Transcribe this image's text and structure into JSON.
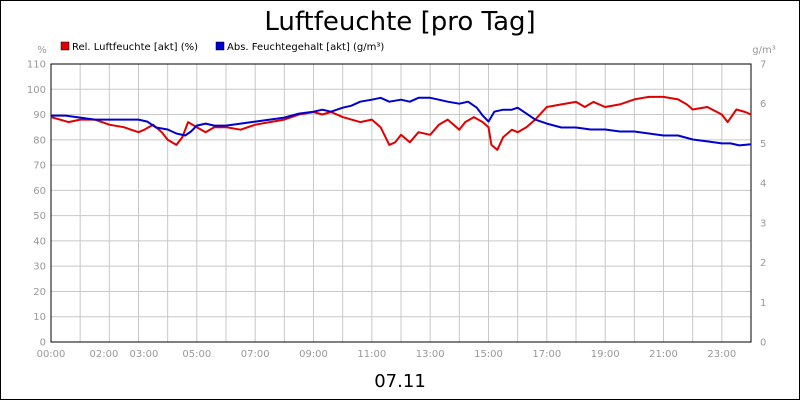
{
  "chart_data": {
    "type": "line",
    "title": "Luftfeuchte [pro Tag]",
    "date_label": "07.11",
    "left_unit": "%",
    "right_unit": "g/m³",
    "ylim_left": [
      0,
      110
    ],
    "ylim_right": [
      0,
      7
    ],
    "y_ticks_left": [
      "0",
      "10",
      "20",
      "30",
      "40",
      "50",
      "60",
      "70",
      "80",
      "90",
      "100",
      "110"
    ],
    "y_ticks_right": [
      "0",
      "1",
      "2",
      "3",
      "4",
      "5",
      "6",
      "7"
    ],
    "x_ticks": [
      {
        "label": "00:00",
        "hour": 0
      },
      {
        "label": "02:00",
        "hour": 2
      },
      {
        "label": "03:00",
        "hour": 3
      },
      {
        "label": "05:00",
        "hour": 5
      },
      {
        "label": "07:00",
        "hour": 7
      },
      {
        "label": "09:00",
        "hour": 9
      },
      {
        "label": "11:00",
        "hour": 11
      },
      {
        "label": "13:00",
        "hour": 13
      },
      {
        "label": "15:00",
        "hour": 15
      },
      {
        "label": "17:00",
        "hour": 17
      },
      {
        "label": "19:00",
        "hour": 19
      },
      {
        "label": "21:00",
        "hour": 21
      },
      {
        "label": "23:00",
        "hour": 23
      }
    ],
    "x_range": [
      0,
      24
    ],
    "grid": true,
    "legend_position": "top-left",
    "series": [
      {
        "name": "Rel. Luftfeuchte [akt] (%)",
        "color": "#e00000",
        "axis": "left",
        "x": [
          0,
          0.3,
          0.6,
          1,
          1.5,
          2,
          2.5,
          3,
          3.2,
          3.5,
          3.8,
          4,
          4.3,
          4.5,
          4.7,
          5,
          5.3,
          5.6,
          6,
          6.5,
          7,
          7.5,
          8,
          8.5,
          9,
          9.3,
          9.6,
          10,
          10.3,
          10.6,
          11,
          11.3,
          11.6,
          11.8,
          12,
          12.3,
          12.6,
          13,
          13.3,
          13.6,
          14,
          14.2,
          14.5,
          14.8,
          15,
          15.1,
          15.3,
          15.5,
          15.8,
          16,
          16.3,
          16.6,
          17,
          17.5,
          18,
          18.3,
          18.6,
          19,
          19.5,
          20,
          20.5,
          21,
          21.5,
          21.8,
          22,
          22.5,
          23,
          23.2,
          23.5,
          23.8,
          24
        ],
        "values": [
          89,
          88,
          87,
          88,
          88,
          86,
          85,
          83,
          84,
          86,
          83,
          80,
          78,
          81,
          87,
          85,
          83,
          85,
          85,
          84,
          86,
          87,
          88,
          90,
          91,
          90,
          91,
          89,
          88,
          87,
          88,
          85,
          78,
          79,
          82,
          79,
          83,
          82,
          86,
          88,
          84,
          87,
          89,
          87,
          85,
          78,
          76,
          81,
          84,
          83,
          85,
          88,
          93,
          94,
          95,
          93,
          95,
          93,
          94,
          96,
          97,
          97,
          96,
          94,
          92,
          93,
          90,
          87,
          92,
          91,
          90
        ]
      },
      {
        "name": "Abs. Feuchtegehalt [akt] (g/m³)",
        "color": "#0000d0",
        "axis": "right",
        "x": [
          0,
          0.5,
          1,
          1.5,
          2,
          2.5,
          3,
          3.3,
          3.6,
          4,
          4.3,
          4.6,
          4.8,
          5,
          5.3,
          5.6,
          6,
          6.5,
          7,
          7.5,
          8,
          8.5,
          9,
          9.3,
          9.6,
          10,
          10.3,
          10.6,
          11,
          11.3,
          11.6,
          12,
          12.3,
          12.6,
          13,
          13.3,
          13.6,
          14,
          14.3,
          14.6,
          14.8,
          15,
          15.2,
          15.5,
          15.8,
          16,
          16.3,
          16.6,
          17,
          17.5,
          18,
          18.5,
          19,
          19.5,
          20,
          20.5,
          21,
          21.5,
          22,
          22.5,
          23,
          23.3,
          23.6,
          24
        ],
        "values": [
          5.7,
          5.7,
          5.65,
          5.6,
          5.6,
          5.6,
          5.6,
          5.55,
          5.4,
          5.35,
          5.25,
          5.2,
          5.3,
          5.45,
          5.5,
          5.45,
          5.45,
          5.5,
          5.55,
          5.6,
          5.65,
          5.75,
          5.8,
          5.85,
          5.8,
          5.9,
          5.95,
          6.05,
          6.1,
          6.15,
          6.05,
          6.1,
          6.05,
          6.15,
          6.15,
          6.1,
          6.05,
          6.0,
          6.05,
          5.9,
          5.7,
          5.55,
          5.8,
          5.85,
          5.85,
          5.9,
          5.75,
          5.6,
          5.5,
          5.4,
          5.4,
          5.35,
          5.35,
          5.3,
          5.3,
          5.25,
          5.2,
          5.2,
          5.1,
          5.05,
          5.0,
          5.0,
          4.95,
          4.98
        ]
      }
    ]
  }
}
